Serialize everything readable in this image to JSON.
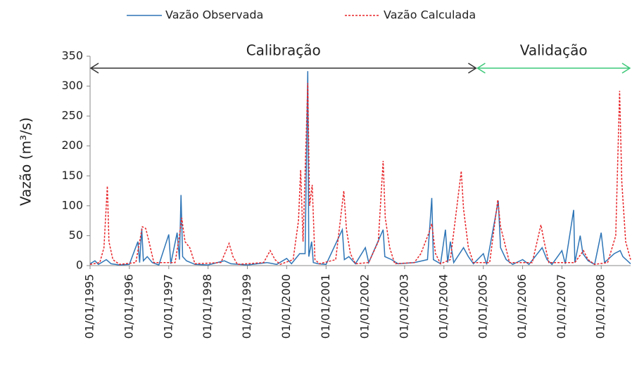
{
  "chart_data": {
    "type": "line",
    "ylabel": "Vazão (m³/s)",
    "ylim": [
      0,
      350
    ],
    "yticks": [
      0,
      50,
      100,
      150,
      200,
      250,
      300,
      350
    ],
    "xlim": [
      "1995-01-01",
      "2008-09-30"
    ],
    "xticks": [
      {
        "value": "1995-01-01",
        "label": "01/01/1995"
      },
      {
        "value": "1996-01-01",
        "label": "01/01/1996"
      },
      {
        "value": "1997-01-01",
        "label": "01/01/1997"
      },
      {
        "value": "1998-01-01",
        "label": "01/01/1998"
      },
      {
        "value": "1999-01-01",
        "label": "01/01/1999"
      },
      {
        "value": "2000-01-01",
        "label": "01/01/2000"
      },
      {
        "value": "2001-01-01",
        "label": "01/01/2001"
      },
      {
        "value": "2002-01-01",
        "label": "01/01/2002"
      },
      {
        "value": "2003-01-01",
        "label": "01/01/2003"
      },
      {
        "value": "2004-01-01",
        "label": "01/01/2004"
      },
      {
        "value": "2005-01-01",
        "label": "01/01/2005"
      },
      {
        "value": "2006-01-01",
        "label": "01/01/2006"
      },
      {
        "value": "2007-01-01",
        "label": "01/01/2007"
      },
      {
        "value": "2008-01-01",
        "label": "01/01/2008"
      }
    ],
    "legend": "top",
    "annotations": [
      {
        "text": "Calibração",
        "x": [
          "1995-01-01",
          "2004-11-01"
        ],
        "y": 330,
        "color": "#333333"
      },
      {
        "text": "Validação",
        "x": [
          "2004-11-01",
          "2008-09-30"
        ],
        "y": 330,
        "color": "#3cc878"
      }
    ],
    "series": [
      {
        "name": "Vazão Observada",
        "color": "#2e75b6",
        "dash": false,
        "x": [
          "1995-01-01",
          "1995-02-15",
          "1995-03-20",
          "1995-06-01",
          "1995-07-15",
          "1995-10-01",
          "1996-01-01",
          "1996-03-20",
          "1996-04-05",
          "1996-04-25",
          "1996-05-10",
          "1996-06-15",
          "1996-08-01",
          "1996-10-01",
          "1997-01-01",
          "1997-01-20",
          "1997-03-20",
          "1997-04-10",
          "1997-04-25",
          "1997-05-10",
          "1997-06-15",
          "1997-09-01",
          "1998-01-01",
          "1998-06-01",
          "1998-08-01",
          "1999-01-01",
          "1999-07-01",
          "1999-10-01",
          "2000-01-01",
          "2000-02-15",
          "2000-05-01",
          "2000-06-20",
          "2000-07-15",
          "2000-07-25",
          "2000-08-20",
          "2000-09-05",
          "2000-10-20",
          "2001-01-01",
          "2001-06-01",
          "2001-06-20",
          "2001-08-01",
          "2001-10-01",
          "2002-01-01",
          "2002-02-01",
          "2002-06-15",
          "2002-07-01",
          "2002-09-01",
          "2002-11-01",
          "2003-04-01",
          "2003-08-01",
          "2003-09-10",
          "2003-09-25",
          "2003-12-01",
          "2004-01-15",
          "2004-02-05",
          "2004-03-01",
          "2004-04-01",
          "2004-07-01",
          "2004-08-15",
          "2004-10-01",
          "2005-01-01",
          "2005-02-01",
          "2005-05-20",
          "2005-06-10",
          "2005-08-01",
          "2005-10-01",
          "2006-01-01",
          "2006-03-01",
          "2006-07-01",
          "2006-08-15",
          "2006-10-01",
          "2007-01-01",
          "2007-02-01",
          "2007-04-20",
          "2007-05-01",
          "2007-06-20",
          "2007-07-15",
          "2007-09-01",
          "2007-11-01",
          "2008-01-01",
          "2008-02-01",
          "2008-05-01",
          "2008-06-25",
          "2008-07-20",
          "2008-09-30"
        ],
        "values": [
          3,
          8,
          2,
          10,
          3,
          1,
          2,
          40,
          5,
          62,
          8,
          15,
          5,
          1,
          52,
          3,
          55,
          10,
          118,
          15,
          8,
          2,
          1,
          8,
          3,
          1,
          5,
          2,
          12,
          3,
          20,
          20,
          325,
          15,
          40,
          5,
          3,
          2,
          60,
          10,
          15,
          3,
          30,
          5,
          60,
          15,
          10,
          3,
          5,
          10,
          113,
          10,
          3,
          60,
          5,
          40,
          5,
          30,
          15,
          3,
          20,
          2,
          108,
          30,
          10,
          2,
          10,
          2,
          30,
          10,
          2,
          25,
          3,
          93,
          5,
          50,
          20,
          8,
          2,
          55,
          5,
          20,
          25,
          15,
          3
        ]
      },
      {
        "name": "Vazão Calculada",
        "color": "#e8262a",
        "dash": true,
        "x": [
          "1995-01-01",
          "1995-04-01",
          "1995-05-10",
          "1995-06-10",
          "1995-06-25",
          "1995-08-01",
          "1995-10-01",
          "1996-03-01",
          "1996-04-15",
          "1996-05-01",
          "1996-06-01",
          "1996-07-01",
          "1996-08-15",
          "1997-03-01",
          "1997-04-10",
          "1997-05-01",
          "1997-06-01",
          "1997-07-15",
          "1997-09-01",
          "1998-05-01",
          "1998-07-15",
          "1998-08-20",
          "1998-10-01",
          "1999-06-01",
          "1999-08-01",
          "1999-09-15",
          "1999-11-01",
          "2000-03-01",
          "2000-04-20",
          "2000-05-10",
          "2000-06-01",
          "2000-07-15",
          "2000-08-01",
          "2000-08-25",
          "2000-09-20",
          "2000-11-01",
          "2001-04-01",
          "2001-06-15",
          "2001-07-10",
          "2001-08-15",
          "2001-10-01",
          "2002-02-01",
          "2002-05-01",
          "2002-06-15",
          "2002-07-05",
          "2002-08-15",
          "2002-10-01",
          "2003-04-01",
          "2003-06-01",
          "2003-08-15",
          "2003-09-10",
          "2003-10-15",
          "2003-12-01",
          "2004-03-01",
          "2004-06-10",
          "2004-07-01",
          "2004-08-15",
          "2004-10-01",
          "2005-03-01",
          "2005-05-15",
          "2005-06-10",
          "2005-07-15",
          "2005-09-01",
          "2006-04-01",
          "2006-06-20",
          "2006-07-20",
          "2006-09-01",
          "2007-05-01",
          "2007-07-20",
          "2007-09-01",
          "2007-11-01",
          "2008-03-01",
          "2008-05-15",
          "2008-06-20",
          "2008-07-10",
          "2008-08-15",
          "2008-09-30"
        ],
        "values": [
          2,
          5,
          30,
          133,
          40,
          10,
          2,
          5,
          50,
          65,
          62,
          40,
          5,
          5,
          50,
          80,
          40,
          30,
          3,
          5,
          37,
          15,
          2,
          5,
          25,
          10,
          2,
          10,
          75,
          160,
          40,
          305,
          100,
          135,
          10,
          3,
          10,
          125,
          60,
          20,
          3,
          5,
          40,
          175,
          80,
          30,
          3,
          5,
          20,
          55,
          70,
          20,
          3,
          10,
          158,
          95,
          30,
          5,
          5,
          110,
          65,
          40,
          5,
          5,
          68,
          40,
          5,
          5,
          25,
          10,
          2,
          5,
          50,
          292,
          140,
          40,
          10
        ]
      }
    ]
  }
}
